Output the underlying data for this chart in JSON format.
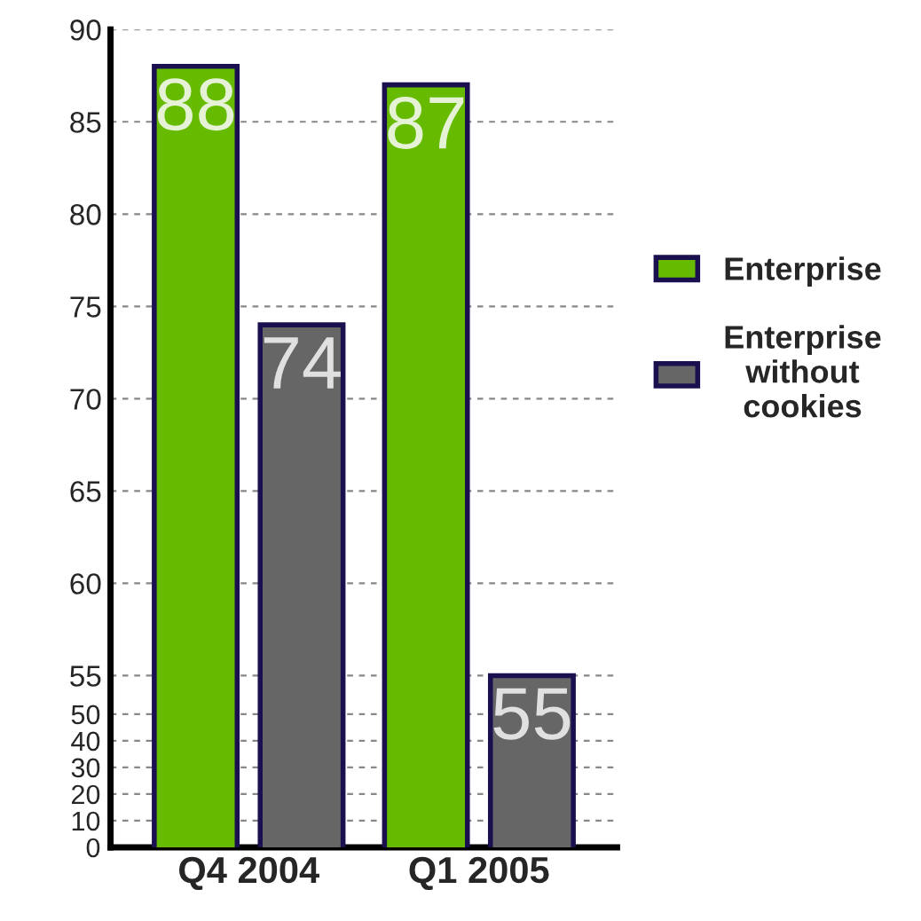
{
  "chart_data": {
    "type": "bar",
    "categories": [
      "Q4 2004",
      "Q1 2005"
    ],
    "series": [
      {
        "name": "Enterprise",
        "color": "#66bb00",
        "values": [
          88,
          87
        ]
      },
      {
        "name": "Enterprise without cookies",
        "color": "#666666",
        "values": [
          74,
          55
        ]
      }
    ],
    "ylim": [
      45.7,
      90
    ],
    "yticks": [
      55,
      60,
      65,
      70,
      75,
      80,
      85,
      90
    ],
    "y2lim": [
      0,
      307
    ],
    "y2ticks": [
      0,
      10,
      20,
      30,
      40,
      50
    ],
    "grid": "y",
    "legend": "right",
    "data_labels": true
  }
}
